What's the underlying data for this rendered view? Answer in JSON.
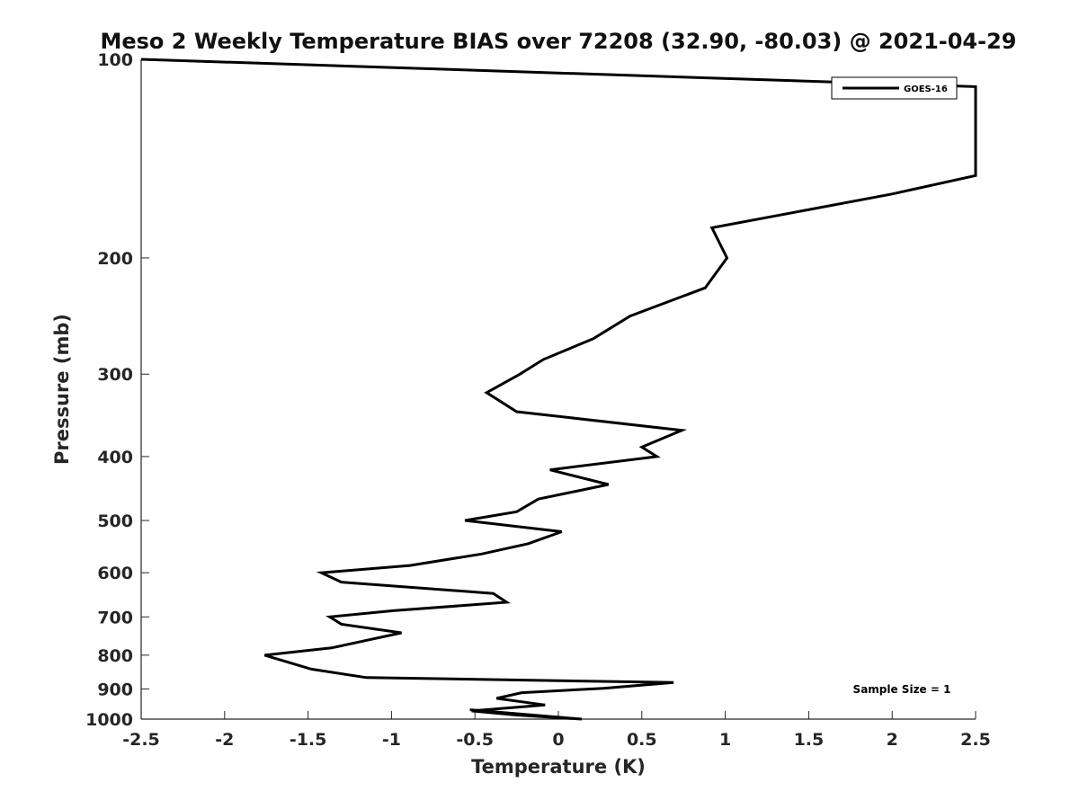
{
  "chart_data": {
    "type": "line",
    "title": "Meso 2 Weekly Temperature BIAS over 72208 (32.90, -80.03) @ 2021-04-29",
    "xlabel": "Temperature (K)",
    "ylabel": "Pressure (mb)",
    "xlim": [
      -2.5,
      2.5
    ],
    "ylim": [
      100,
      1000
    ],
    "yscale": "log",
    "y_reversed": true,
    "xticks": [
      -2.5,
      -2,
      -1.5,
      -1,
      -0.5,
      0,
      0.5,
      1,
      1.5,
      2,
      2.5
    ],
    "xtick_labels": [
      "-2.5",
      "-2",
      "-1.5",
      "-1",
      "-0.5",
      "0",
      "0.5",
      "1",
      "1.5",
      "2",
      "2.5"
    ],
    "yticks": [
      100,
      200,
      300,
      400,
      500,
      600,
      700,
      800,
      900,
      1000
    ],
    "ytick_labels": [
      "100",
      "200",
      "300",
      "400",
      "500",
      "600",
      "700",
      "800",
      "900",
      "1000"
    ],
    "grid": false,
    "legend_position": "top-right",
    "annotation": "Sample Size = 1",
    "series": [
      {
        "name": "GOES-16",
        "color": "#000000",
        "points": [
          [
            -2.5,
            100
          ],
          [
            2.5,
            110
          ],
          [
            2.5,
            150
          ],
          [
            2.0,
            160
          ],
          [
            0.92,
            180
          ],
          [
            1.01,
            200
          ],
          [
            0.88,
            222
          ],
          [
            0.43,
            245
          ],
          [
            0.21,
            265
          ],
          [
            -0.09,
            285
          ],
          [
            -0.23,
            300
          ],
          [
            -0.43,
            320
          ],
          [
            -0.25,
            342
          ],
          [
            0.74,
            365
          ],
          [
            0.5,
            387
          ],
          [
            0.59,
            400
          ],
          [
            -0.05,
            419
          ],
          [
            0.3,
            441
          ],
          [
            -0.12,
            464
          ],
          [
            -0.25,
            485
          ],
          [
            -0.56,
            500
          ],
          [
            0.02,
            520
          ],
          [
            -0.18,
            542
          ],
          [
            -0.46,
            562
          ],
          [
            -0.89,
            585
          ],
          [
            -1.42,
            600
          ],
          [
            -1.3,
            620
          ],
          [
            -0.39,
            645
          ],
          [
            -0.31,
            665
          ],
          [
            -0.99,
            685
          ],
          [
            -1.37,
            700
          ],
          [
            -1.3,
            718
          ],
          [
            -0.94,
            740
          ],
          [
            -1.36,
            780
          ],
          [
            -1.76,
            800
          ],
          [
            -1.48,
            840
          ],
          [
            -1.15,
            865
          ],
          [
            0.69,
            880
          ],
          [
            0.27,
            898
          ],
          [
            -0.22,
            912
          ],
          [
            -0.37,
            930
          ],
          [
            -0.08,
            952
          ],
          [
            -0.52,
            972
          ],
          [
            -0.25,
            986
          ],
          [
            0.14,
            1000
          ],
          [
            -0.53,
            968
          ]
        ]
      }
    ]
  }
}
